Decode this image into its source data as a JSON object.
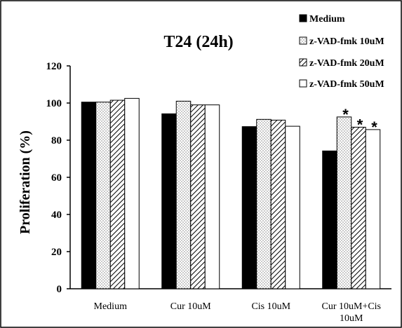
{
  "chart_data": {
    "type": "bar",
    "title": "T24 (24h)",
    "ylabel": "Proliferation (%)",
    "xlabel": "",
    "ylim": [
      0,
      120
    ],
    "yticks": [
      "0",
      "20",
      "40",
      "60",
      "80",
      "100",
      "120"
    ],
    "categories": [
      "Medium",
      "Cur 10uM",
      "Cis 10uM",
      "Cur 10uM+Cis 10uM"
    ],
    "series": [
      {
        "name": "Medium",
        "values": [
          100.5,
          94.2,
          87.3,
          74.2
        ],
        "pattern": "solid",
        "color": "#000000"
      },
      {
        "name": "z-VAD-fmk 10uM",
        "values": [
          100.5,
          101.0,
          91.2,
          92.5
        ],
        "pattern": "dots",
        "color": "#000000"
      },
      {
        "name": "z-VAD-fmk 20uM",
        "values": [
          101.5,
          99.0,
          90.8,
          87.0
        ],
        "pattern": "diagonal",
        "color": "#000000"
      },
      {
        "name": "z-VAD-fmk 50uM",
        "values": [
          102.5,
          99.0,
          87.5,
          85.7
        ],
        "pattern": "white",
        "color": "#000000"
      }
    ],
    "annotations": [
      {
        "text": "*",
        "category": 3,
        "series": 1
      },
      {
        "text": "*",
        "category": 3,
        "series": 2
      },
      {
        "text": "*",
        "category": 3,
        "series": 3
      }
    ],
    "legend_position": "top-right",
    "grid": false
  }
}
